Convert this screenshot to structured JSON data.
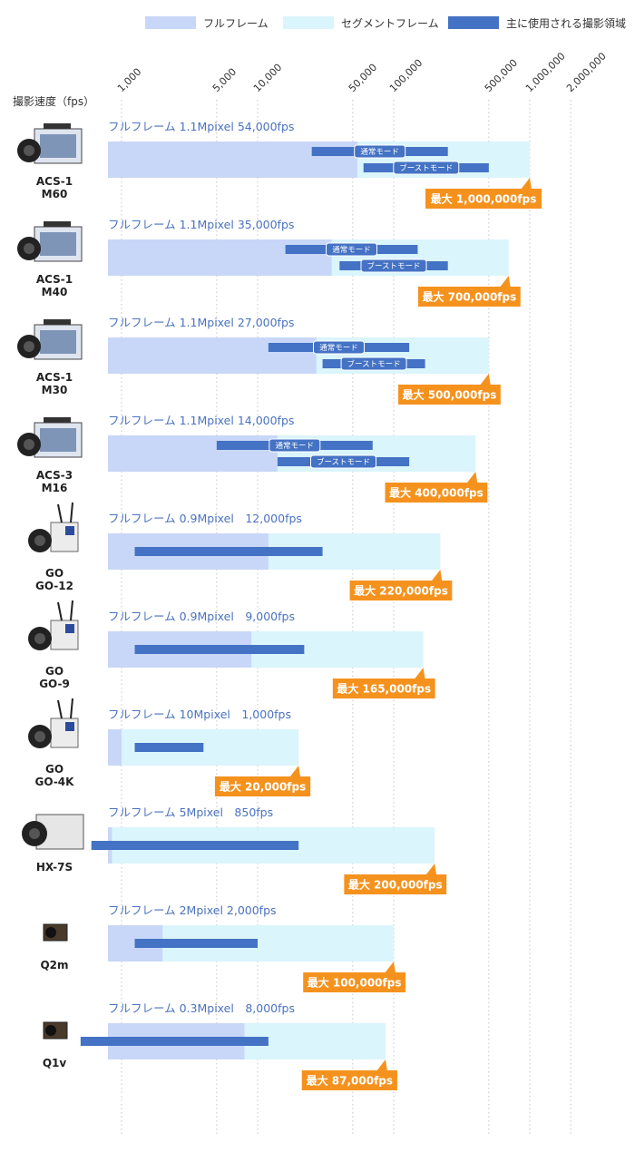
{
  "chart_data": {
    "type": "bar",
    "title": "",
    "ylabel": "撮影速度（fps）",
    "x_scale": "log",
    "x_ticks": [
      {
        "value": 1000,
        "label": "1,000"
      },
      {
        "value": 5000,
        "label": "5,000"
      },
      {
        "value": 10000,
        "label": "10,000"
      },
      {
        "value": 50000,
        "label": "50,000"
      },
      {
        "value": 100000,
        "label": "100,000"
      },
      {
        "value": 500000,
        "label": "500,000"
      },
      {
        "value": 1000000,
        "label": "1,000,000"
      },
      {
        "value": 2000000,
        "label": "2,000,000"
      }
    ],
    "legend": [
      {
        "name": "フルフレーム",
        "color": "#c8d7f7"
      },
      {
        "name": "セグメントフレーム",
        "color": "#daf5fb"
      },
      {
        "name": "主に使用される撮影領域",
        "color": "#4472c4"
      }
    ],
    "mode_labels": {
      "normal": "通常モード",
      "boost": "ブーストモード"
    },
    "cameras": [
      {
        "name_line1": "ACS-1",
        "name_line2": "M60",
        "fullframe_label": "フルフレーム 1.1Mpixel 54,000fps",
        "fullframe_fps": 54000,
        "max_fps": 1000000,
        "max_label": "最大 1,000,000fps",
        "normal_range": [
          25000,
          250000
        ],
        "boost_range": [
          60000,
          500000
        ]
      },
      {
        "name_line1": "ACS-1",
        "name_line2": "M40",
        "fullframe_label": "フルフレーム 1.1Mpixel 35,000fps",
        "fullframe_fps": 35000,
        "max_fps": 700000,
        "max_label": "最大 700,000fps",
        "normal_range": [
          16000,
          150000
        ],
        "boost_range": [
          40000,
          250000
        ]
      },
      {
        "name_line1": "ACS-1",
        "name_line2": "M30",
        "fullframe_label": "フルフレーム 1.1Mpixel 27,000fps",
        "fullframe_fps": 27000,
        "max_fps": 500000,
        "max_label": "最大 500,000fps",
        "normal_range": [
          12000,
          130000
        ],
        "boost_range": [
          30000,
          170000
        ]
      },
      {
        "name_line1": "ACS-3",
        "name_line2": "M16",
        "fullframe_label": "フルフレーム 1.1Mpixel 14,000fps",
        "fullframe_fps": 14000,
        "max_fps": 400000,
        "max_label": "最大 400,000fps",
        "normal_range": [
          5000,
          70000
        ],
        "boost_range": [
          14000,
          130000
        ]
      },
      {
        "name_line1": "GO",
        "name_line2": "GO-12",
        "fullframe_label": "フルフレーム 0.9Mpixel　12,000fps",
        "fullframe_fps": 12000,
        "max_fps": 220000,
        "max_label": "最大 220,000fps",
        "usage_range": [
          1250,
          30000
        ]
      },
      {
        "name_line1": "GO",
        "name_line2": "GO-9",
        "fullframe_label": "フルフレーム 0.9Mpixel　9,000fps",
        "fullframe_fps": 9000,
        "max_fps": 165000,
        "max_label": "最大 165,000fps",
        "usage_range": [
          1250,
          22000
        ]
      },
      {
        "name_line1": "GO",
        "name_line2": "GO-4K",
        "fullframe_label": "フルフレーム 10Mpixel　1,000fps",
        "fullframe_fps": 1000,
        "max_fps": 20000,
        "max_label": "最大 20,000fps",
        "usage_range": [
          1250,
          4000
        ]
      },
      {
        "name_line1": "HX-7S",
        "name_line2": "",
        "fullframe_label": "フルフレーム 5Mpixel　850fps",
        "fullframe_fps": 850,
        "max_fps": 200000,
        "max_label": "最大 200,000fps",
        "usage_range": [
          600,
          20000
        ]
      },
      {
        "name_line1": "Q2m",
        "name_line2": "",
        "fullframe_label": "フルフレーム 2Mpixel 2,000fps",
        "fullframe_fps": 2000,
        "max_fps": 100000,
        "max_label": "最大 100,000fps",
        "usage_range": [
          1250,
          10000
        ]
      },
      {
        "name_line1": "Q1v",
        "name_line2": "",
        "fullframe_label": "フルフレーム 0.3Mpixel　8,000fps",
        "fullframe_fps": 8000,
        "max_fps": 87000,
        "max_label": "最大 87,000fps",
        "usage_range": [
          500,
          12000
        ]
      }
    ]
  }
}
